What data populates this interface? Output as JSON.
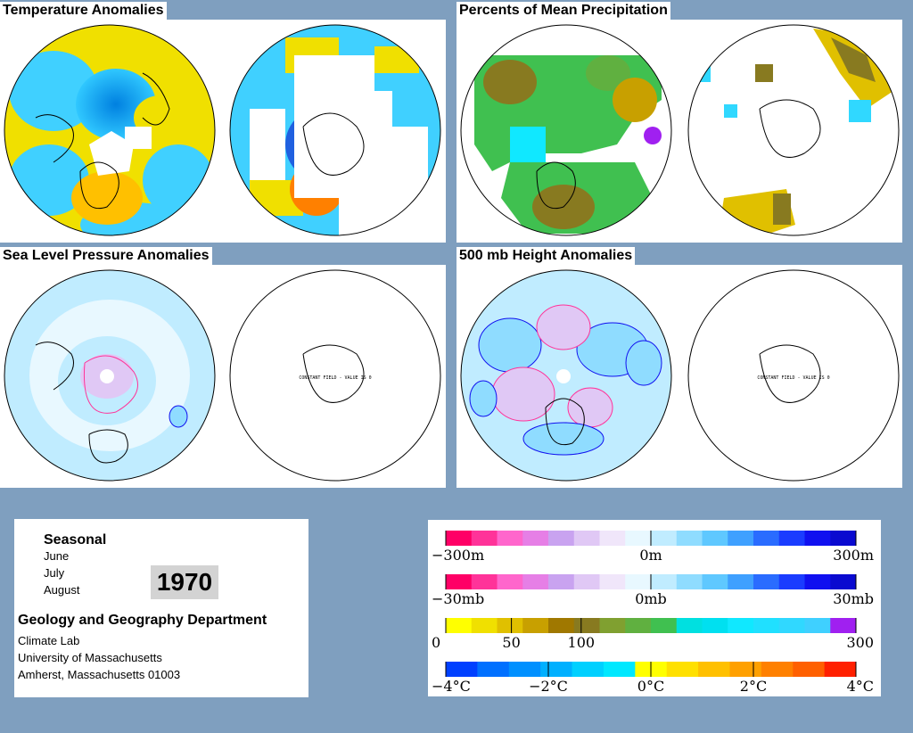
{
  "panels": {
    "temperature": {
      "title": "Temperature Anomalies"
    },
    "precipitation": {
      "title": "Percents of Mean Precipitation"
    },
    "slp": {
      "title": "Sea Level Pressure Anomalies",
      "south_note": "CONSTANT FIELD - VALUE IS 0"
    },
    "height500": {
      "title": "500 mb Height Anomalies",
      "south_note": "CONSTANT FIELD - VALUE IS 0"
    }
  },
  "info": {
    "period": "Seasonal",
    "months": [
      "June",
      "July",
      "August"
    ],
    "year": "1970",
    "department": "Geology and Geography Department",
    "lines": [
      "Climate Lab",
      "University of Massachusetts",
      "Amherst, Massachusetts 01003"
    ]
  },
  "colorbars": [
    {
      "id": "height",
      "labels": [
        "−300m",
        "0m",
        "300m"
      ],
      "colors": [
        "#ff0066",
        "#ff3399",
        "#ff66cc",
        "#e67fe6",
        "#c9a3f0",
        "#e0c8f5",
        "#f0e6fa",
        "#e8f8ff",
        "#c0ecff",
        "#8fdcff",
        "#5fc8ff",
        "#3fa0ff",
        "#2a6cff",
        "#1a3cff",
        "#1010f0",
        "#0a0ad0"
      ]
    },
    {
      "id": "pressure",
      "labels": [
        "−30mb",
        "0mb",
        "30mb"
      ],
      "colors": [
        "#ff0066",
        "#ff3399",
        "#ff66cc",
        "#e67fe6",
        "#c9a3f0",
        "#e0c8f5",
        "#f0e6fa",
        "#e8f8ff",
        "#c0ecff",
        "#8fdcff",
        "#5fc8ff",
        "#3fa0ff",
        "#2a6cff",
        "#1a3cff",
        "#1010f0",
        "#0a0ad0"
      ]
    },
    {
      "id": "precip",
      "labels": [
        "0",
        "50",
        "100",
        "300"
      ],
      "colors": [
        "#ffff00",
        "#f0e000",
        "#e0c000",
        "#c8a000",
        "#a07800",
        "#887a20",
        "#80a030",
        "#60b040",
        "#40c050",
        "#00e0e0",
        "#00e0f0",
        "#10e8ff",
        "#20e0ff",
        "#30d8ff",
        "#3fd0ff",
        "#a020f0"
      ]
    },
    {
      "id": "temp",
      "labels": [
        "−4°C",
        "−2°C",
        "0°C",
        "2°C",
        "4°C"
      ],
      "colors": [
        "#0040ff",
        "#0070ff",
        "#0090ff",
        "#00b0ff",
        "#00d0ff",
        "#00e8ff",
        "#ffff00",
        "#ffe000",
        "#ffc000",
        "#ffa000",
        "#ff8000",
        "#ff6000",
        "#ff2000"
      ]
    }
  ],
  "colors": {
    "background": "#7f9fbf"
  }
}
